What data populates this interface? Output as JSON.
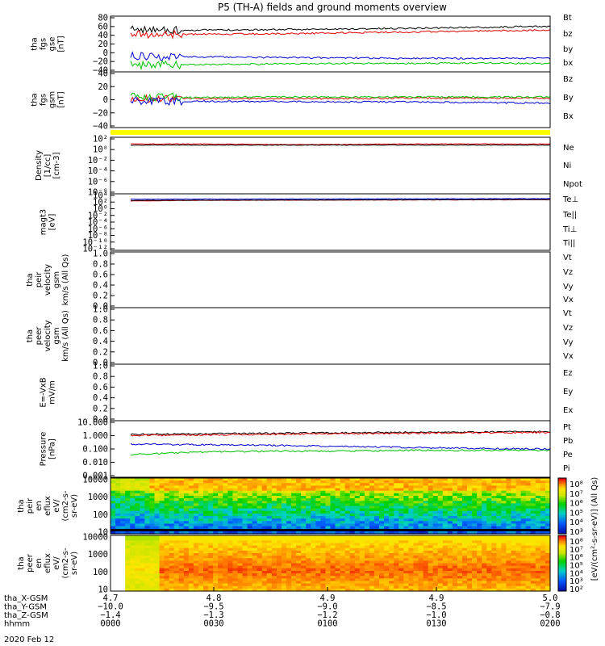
{
  "title": "P5 (TH-A) fields and ground moments overview",
  "date": "2020 Feb 12",
  "colors": {
    "black": "#000000",
    "red": "#e00000",
    "green": "#00c000",
    "blue": "#0000d0",
    "yellow": "#ffff00"
  },
  "chart_data": [
    {
      "type": "line",
      "id": "fgs_gse",
      "ylabel": [
        "tha",
        "fgs",
        "gse",
        "[nT]"
      ],
      "ylim": [
        -40,
        80
      ],
      "yticks": [
        "80",
        "60",
        "40",
        "20",
        "0",
        "−20",
        "−40"
      ],
      "series": [
        {
          "name": "Bt",
          "color": "#000000",
          "values": [
            50,
            50,
            51,
            52,
            54,
            56,
            58
          ]
        },
        {
          "name": "bz",
          "color": "#e00000",
          "values": [
            40,
            41,
            42,
            44,
            46,
            48,
            50
          ]
        },
        {
          "name": "by",
          "color": "#00c000",
          "values": [
            -25,
            -24,
            -23,
            -22,
            -22,
            -21,
            -22
          ]
        },
        {
          "name": "bx",
          "color": "#0000d0",
          "values": [
            -5,
            -8,
            -9,
            -10,
            -11,
            -11,
            -11
          ]
        }
      ]
    },
    {
      "type": "line",
      "id": "fgs_gsm",
      "ylabel": [
        "tha",
        "fgs",
        "gsm",
        "[nT]"
      ],
      "ylim": [
        -50,
        50
      ],
      "yticks": [
        "40",
        "20",
        "0",
        "−20",
        "−40"
      ],
      "series": [
        {
          "name": "Bz",
          "color": "#e00000",
          "values": [
            2,
            2,
            2,
            2,
            3,
            3,
            3
          ]
        },
        {
          "name": "By",
          "color": "#00c000",
          "values": [
            5,
            4,
            5,
            5,
            5,
            5,
            5
          ]
        },
        {
          "name": "Bx",
          "color": "#0000d0",
          "values": [
            -2,
            -3,
            -3,
            -4,
            -4,
            -5,
            -6
          ]
        }
      ]
    },
    {
      "type": "line",
      "id": "density",
      "ylabel": [
        "Density",
        "[1/cc]",
        "[cm-3]"
      ],
      "scale": "log",
      "ylim": [
        1e-09,
        100
      ],
      "yticks": [
        "10²",
        "10⁰",
        "10⁻²",
        "10⁻⁴",
        "10⁻⁶",
        "10⁻⁸"
      ],
      "series": [
        {
          "name": "Ne",
          "color": "#e00000",
          "values": [
            5,
            5,
            4,
            4,
            5,
            5,
            5
          ]
        },
        {
          "name": "Ni",
          "color": "#000000",
          "values": [
            3,
            3,
            3,
            3,
            3,
            3,
            3
          ]
        },
        {
          "name": "Npot",
          "color": "#0000d0",
          "values": []
        }
      ]
    },
    {
      "type": "line",
      "id": "temperature",
      "ylabel": [
        "magt3",
        "[eV]"
      ],
      "scale": "log",
      "ylim": [
        1e-13,
        100000.0
      ],
      "yticks": [
        "10⁴",
        "10²",
        "10⁰",
        "10⁻²",
        "10⁻⁴",
        "10⁻⁶",
        "10⁻⁸",
        "10⁻¹⁰",
        "10⁻¹²"
      ],
      "series": [
        {
          "name": "Te⊥",
          "color": "#e00000",
          "values": [
            500,
            800,
            900,
            1000,
            1100,
            1200,
            1300
          ]
        },
        {
          "name": "Te||",
          "color": "#000000",
          "values": [
            800,
            900,
            1000,
            1100,
            1200,
            1400,
            1500
          ]
        },
        {
          "name": "Ti⊥",
          "color": "#0000d0",
          "values": [
            2000,
            2100,
            2200,
            2400,
            2600,
            2800,
            3000
          ]
        },
        {
          "name": "Ti||",
          "color": "#00c000",
          "values": []
        }
      ]
    },
    {
      "type": "line",
      "id": "peir_velocity",
      "ylabel": [
        "tha",
        "peir",
        "velocity",
        "gsm",
        "km/s (All Qs)"
      ],
      "ylim": [
        0,
        1
      ],
      "yticks": [
        "1.0",
        "0.8",
        "0.6",
        "0.4",
        "0.2",
        "0.0"
      ],
      "series": [
        {
          "name": "Vt",
          "color": "#000000",
          "values": []
        },
        {
          "name": "Vz",
          "color": "#e00000",
          "values": []
        },
        {
          "name": "Vy",
          "color": "#00c000",
          "values": []
        },
        {
          "name": "Vx",
          "color": "#0000d0",
          "values": []
        }
      ]
    },
    {
      "type": "line",
      "id": "peer_velocity",
      "ylabel": [
        "tha",
        "peer",
        "velocity",
        "gsm",
        "km/s (All Qs)"
      ],
      "ylim": [
        0,
        1
      ],
      "yticks": [
        "1.0",
        "0.8",
        "0.6",
        "0.4",
        "0.2",
        "0.0"
      ],
      "series": [
        {
          "name": "Vt",
          "color": "#000000",
          "values": []
        },
        {
          "name": "Vz",
          "color": "#e00000",
          "values": []
        },
        {
          "name": "Vy",
          "color": "#00c000",
          "values": []
        },
        {
          "name": "Vx",
          "color": "#0000d0",
          "values": []
        }
      ]
    },
    {
      "type": "line",
      "id": "efield",
      "ylabel": [
        "E=-VxB",
        "mV/m"
      ],
      "ylim": [
        0,
        1
      ],
      "yticks": [
        "1.0",
        "0.8",
        "0.6",
        "0.4",
        "0.2",
        "0.0"
      ],
      "series": [
        {
          "name": "Ez",
          "color": "#e00000",
          "values": []
        },
        {
          "name": "Ey",
          "color": "#00c000",
          "values": []
        },
        {
          "name": "Ex",
          "color": "#0000d0",
          "values": []
        }
      ]
    },
    {
      "type": "line",
      "id": "pressure",
      "ylabel": [
        "Pressure",
        "[nPa]"
      ],
      "scale": "log",
      "ylim": [
        0.001,
        10
      ],
      "yticks": [
        "10.000",
        "1.000",
        "0.100",
        "0.010",
        "0.001"
      ],
      "series": [
        {
          "name": "Pt",
          "color": "#000000",
          "values": [
            1.1,
            1.2,
            1.3,
            1.4,
            1.5,
            1.6,
            1.7
          ]
        },
        {
          "name": "Pb",
          "color": "#e00000",
          "values": [
            0.9,
            1.0,
            1.1,
            1.2,
            1.3,
            1.4,
            1.5
          ]
        },
        {
          "name": "Pe",
          "color": "#00c000",
          "values": [
            0.04,
            0.06,
            0.07,
            0.07,
            0.08,
            0.08,
            0.08
          ]
        },
        {
          "name": "Pi",
          "color": "#0000d0",
          "values": [
            0.22,
            0.2,
            0.18,
            0.15,
            0.13,
            0.11,
            0.1
          ]
        }
      ]
    },
    {
      "type": "heatmap",
      "id": "peir_en",
      "ylabel": [
        "tha",
        "peir",
        "en",
        "eflux",
        "eV/",
        "(cm2-s-",
        "sr-eV)"
      ],
      "scale": "log",
      "ylim": [
        5,
        20000
      ],
      "yticks": [
        "10000",
        "1000",
        "100",
        "10"
      ],
      "colorbar": {
        "ticks": [
          "10⁸",
          "10⁷",
          "10⁶",
          "10⁵",
          "10⁴",
          "10³"
        ]
      }
    },
    {
      "type": "heatmap",
      "id": "peer_en",
      "ylabel": [
        "tha",
        "peer",
        "en",
        "eflux",
        "eV/",
        "(cm2-s-",
        "sr-eV)"
      ],
      "scale": "log",
      "ylim": [
        5,
        20000
      ],
      "yticks": [
        "10000",
        "1000",
        "100",
        "10"
      ],
      "colorbar": {
        "ticks": [
          "10⁸",
          "10⁷",
          "10⁶",
          "10⁵",
          "10⁴",
          "10³",
          "10²"
        ]
      }
    }
  ],
  "colorbar_label": "[eV/(cm²-s-sr-eV)] (All Qs)",
  "xaxis": {
    "row_labels": [
      "tha_X-GSM",
      "tha_Y-GSM",
      "tha_Z-GSM",
      "hhmm"
    ],
    "columns": [
      {
        "values": [
          "4.7",
          "−10.0",
          "−1.4",
          "0000"
        ]
      },
      {
        "values": [
          "4.8",
          "−9.5",
          "−1.3",
          "0030"
        ]
      },
      {
        "values": [
          "4.9",
          "−9.0",
          "−1.2",
          "0100"
        ]
      },
      {
        "values": [
          "4.9",
          "−8.5",
          "−1.0",
          "0130"
        ]
      },
      {
        "values": [
          "5.0",
          "−7.9",
          "−0.8",
          "0200"
        ]
      }
    ]
  }
}
